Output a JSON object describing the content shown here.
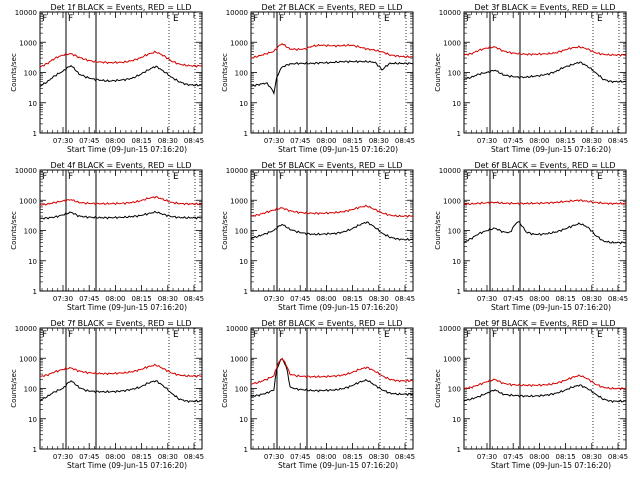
{
  "chart_data": [
    {
      "type": "line",
      "title": "Det 1f BLACK = Events, RED = LLD",
      "ylabel": "Counts/sec",
      "xlabel": "Start Time (09-Jun-15 07:16:20)",
      "x_ticks": [
        "07:30",
        "07:45",
        "08:00",
        "08:15",
        "08:30",
        "08:45"
      ],
      "y_ticks": [
        "1",
        "10",
        "100",
        "1000",
        "10000"
      ],
      "ylim": [
        1,
        10000
      ],
      "y_scale": "log",
      "markers": [
        "F",
        "F",
        "E"
      ],
      "series": [
        {
          "name": "Events",
          "color": "#000000",
          "values": [
            35,
            50,
            80,
            110,
            170,
            90,
            70,
            60,
            55,
            52,
            55,
            58,
            65,
            85,
            120,
            160,
            110,
            70,
            50,
            40,
            38,
            38
          ]
        },
        {
          "name": "LLD",
          "color": "#d40000",
          "values": [
            150,
            200,
            300,
            380,
            420,
            320,
            260,
            230,
            220,
            210,
            215,
            220,
            250,
            300,
            400,
            480,
            360,
            240,
            190,
            170,
            165,
            165
          ]
        }
      ]
    },
    {
      "type": "line",
      "title": "Det 2f BLACK = Events, RED = LLD",
      "ylabel": "Counts/sec",
      "xlabel": "Start Time (09-Jun-15 07:16:20)",
      "x_ticks": [
        "07:30",
        "07:45",
        "08:00",
        "08:15",
        "08:30",
        "08:45"
      ],
      "y_ticks": [
        "1",
        "10",
        "100",
        "1000",
        "10000"
      ],
      "ylim": [
        1,
        10000
      ],
      "y_scale": "log",
      "markers": [
        "F",
        "F",
        "E"
      ],
      "series": [
        {
          "name": "Events",
          "color": "#000000",
          "values": [
            35,
            40,
            45,
            20,
            150,
            190,
            200,
            200,
            200,
            210,
            210,
            220,
            230,
            230,
            230,
            230,
            220,
            120,
            200,
            200,
            200,
            200
          ]
        },
        {
          "name": "LLD",
          "color": "#d40000",
          "values": [
            300,
            350,
            420,
            500,
            900,
            600,
            580,
            600,
            750,
            800,
            780,
            760,
            780,
            800,
            700,
            600,
            550,
            480,
            380,
            350,
            330,
            330
          ]
        }
      ]
    },
    {
      "type": "line",
      "title": "Det 3f BLACK = Events, RED = LLD",
      "ylabel": "Counts/sec",
      "xlabel": "Start Time (09-Jun-15 07:16:20)",
      "x_ticks": [
        "07:30",
        "07:45",
        "08:00",
        "08:15",
        "08:30",
        "08:45"
      ],
      "y_ticks": [
        "1",
        "10",
        "100",
        "1000",
        "10000"
      ],
      "ylim": [
        1,
        10000
      ],
      "y_scale": "log",
      "markers": [
        "F",
        "F",
        "E"
      ],
      "series": [
        {
          "name": "Events",
          "color": "#000000",
          "values": [
            60,
            70,
            90,
            100,
            120,
            85,
            75,
            70,
            70,
            75,
            80,
            90,
            110,
            150,
            180,
            220,
            160,
            100,
            60,
            50,
            50,
            50
          ]
        },
        {
          "name": "LLD",
          "color": "#d40000",
          "values": [
            380,
            420,
            550,
            650,
            700,
            520,
            450,
            420,
            400,
            400,
            410,
            420,
            450,
            550,
            650,
            700,
            600,
            450,
            400,
            380,
            380,
            380
          ]
        }
      ]
    },
    {
      "type": "line",
      "title": "Det 4f BLACK = Events, RED = LLD",
      "ylabel": "Counts/sec",
      "xlabel": "Start Time (09-Jun-15 07:16:20)",
      "x_ticks": [
        "07:30",
        "07:45",
        "08:00",
        "08:15",
        "08:30",
        "08:45"
      ],
      "y_ticks": [
        "1",
        "10",
        "100",
        "1000",
        "10000"
      ],
      "ylim": [
        1,
        10000
      ],
      "y_scale": "log",
      "markers": [
        "F",
        "F",
        "E"
      ],
      "series": [
        {
          "name": "Events",
          "color": "#000000",
          "values": [
            250,
            260,
            280,
            330,
            400,
            300,
            280,
            270,
            265,
            265,
            270,
            275,
            290,
            310,
            360,
            410,
            340,
            290,
            270,
            265,
            265,
            265
          ]
        },
        {
          "name": "LLD",
          "color": "#d40000",
          "values": [
            700,
            750,
            850,
            950,
            1050,
            850,
            800,
            780,
            770,
            770,
            780,
            800,
            850,
            950,
            1150,
            1300,
            1050,
            850,
            780,
            760,
            750,
            750
          ]
        }
      ]
    },
    {
      "type": "line",
      "title": "Det 5f BLACK = Events, RED = LLD",
      "ylabel": "Counts/sec",
      "xlabel": "Start Time (09-Jun-15 07:16:20)",
      "x_ticks": [
        "07:30",
        "07:45",
        "08:00",
        "08:15",
        "08:30",
        "08:45"
      ],
      "y_ticks": [
        "1",
        "10",
        "100",
        "1000",
        "10000"
      ],
      "ylim": [
        1,
        10000
      ],
      "y_scale": "log",
      "markers": [
        "F",
        "F",
        "E"
      ],
      "series": [
        {
          "name": "Events",
          "color": "#000000",
          "values": [
            55,
            65,
            80,
            100,
            160,
            110,
            90,
            80,
            75,
            75,
            78,
            80,
            90,
            110,
            150,
            190,
            130,
            80,
            60,
            52,
            50,
            50
          ]
        },
        {
          "name": "LLD",
          "color": "#d40000",
          "values": [
            300,
            330,
            400,
            480,
            560,
            450,
            400,
            380,
            370,
            370,
            380,
            390,
            420,
            480,
            580,
            650,
            500,
            380,
            320,
            300,
            300,
            300
          ]
        }
      ]
    },
    {
      "type": "line",
      "title": "Det 6f BLACK = Events, RED = LLD",
      "ylabel": "Counts/sec",
      "xlabel": "Start Time (09-Jun-15 07:16:20)",
      "x_ticks": [
        "07:30",
        "07:45",
        "08:00",
        "08:15",
        "08:30",
        "08:45"
      ],
      "y_ticks": [
        "1",
        "10",
        "100",
        "1000",
        "10000"
      ],
      "ylim": [
        1,
        10000
      ],
      "y_scale": "log",
      "markers": [
        "F",
        "F",
        "E"
      ],
      "series": [
        {
          "name": "Events",
          "color": "#000000",
          "values": [
            40,
            55,
            80,
            100,
            120,
            90,
            85,
            200,
            90,
            75,
            75,
            80,
            90,
            110,
            140,
            170,
            130,
            70,
            45,
            40,
            40,
            40
          ]
        },
        {
          "name": "LLD",
          "color": "#d40000",
          "values": [
            750,
            760,
            800,
            820,
            850,
            800,
            790,
            780,
            780,
            790,
            800,
            820,
            850,
            900,
            950,
            1000,
            920,
            850,
            800,
            780,
            780,
            780
          ]
        }
      ]
    },
    {
      "type": "line",
      "title": "Det 7f BLACK = Events, RED = LLD",
      "ylabel": "Counts/sec",
      "xlabel": "Start Time (09-Jun-15 07:16:20)",
      "x_ticks": [
        "07:30",
        "07:45",
        "08:00",
        "08:15",
        "08:30",
        "08:45"
      ],
      "y_ticks": [
        "1",
        "10",
        "100",
        "1000",
        "10000"
      ],
      "ylim": [
        1,
        10000
      ],
      "y_scale": "log",
      "markers": [
        "F",
        "F",
        "E"
      ],
      "series": [
        {
          "name": "Events",
          "color": "#000000",
          "values": [
            40,
            55,
            80,
            100,
            180,
            110,
            85,
            80,
            78,
            78,
            80,
            85,
            95,
            110,
            150,
            180,
            120,
            70,
            45,
            38,
            38,
            38
          ]
        },
        {
          "name": "LLD",
          "color": "#d40000",
          "values": [
            250,
            280,
            360,
            430,
            480,
            380,
            340,
            320,
            310,
            310,
            320,
            330,
            360,
            420,
            520,
            600,
            450,
            330,
            280,
            260,
            260,
            260
          ]
        }
      ]
    },
    {
      "type": "line",
      "title": "Det 8f BLACK = Events, RED = LLD",
      "ylabel": "Counts/sec",
      "xlabel": "Start Time (09-Jun-15 07:16:20)",
      "x_ticks": [
        "07:30",
        "07:45",
        "08:00",
        "08:15",
        "08:30",
        "08:45"
      ],
      "y_ticks": [
        "1",
        "10",
        "100",
        "1000",
        "10000"
      ],
      "ylim": [
        1,
        10000
      ],
      "y_scale": "log",
      "markers": [
        "F",
        "F",
        "E"
      ],
      "series": [
        {
          "name": "Events",
          "color": "#000000",
          "values": [
            55,
            60,
            70,
            90,
            1000,
            110,
            95,
            90,
            85,
            85,
            88,
            90,
            100,
            120,
            160,
            190,
            130,
            90,
            70,
            65,
            65,
            65
          ]
        },
        {
          "name": "LLD",
          "color": "#d40000",
          "values": [
            140,
            160,
            200,
            260,
            1000,
            300,
            260,
            250,
            245,
            245,
            250,
            260,
            280,
            330,
            420,
            500,
            380,
            260,
            200,
            180,
            180,
            180
          ]
        }
      ]
    },
    {
      "type": "line",
      "title": "Det 9f BLACK = Events, RED = LLD",
      "ylabel": "Counts/sec",
      "xlabel": "Start Time (09-Jun-15 07:16:20)",
      "x_ticks": [
        "07:30",
        "07:45",
        "08:00",
        "08:15",
        "08:30",
        "08:45"
      ],
      "y_ticks": [
        "1",
        "10",
        "100",
        "1000",
        "10000"
      ],
      "ylim": [
        1,
        10000
      ],
      "y_scale": "log",
      "markers": [
        "F",
        "F",
        "E"
      ],
      "series": [
        {
          "name": "Events",
          "color": "#000000",
          "values": [
            40,
            45,
            55,
            70,
            90,
            65,
            60,
            58,
            56,
            56,
            58,
            62,
            70,
            85,
            110,
            130,
            100,
            65,
            45,
            38,
            38,
            38
          ]
        },
        {
          "name": "LLD",
          "color": "#d40000",
          "values": [
            100,
            110,
            135,
            170,
            200,
            150,
            135,
            130,
            128,
            128,
            130,
            135,
            150,
            180,
            230,
            270,
            210,
            140,
            110,
            100,
            100,
            100
          ]
        }
      ]
    }
  ]
}
